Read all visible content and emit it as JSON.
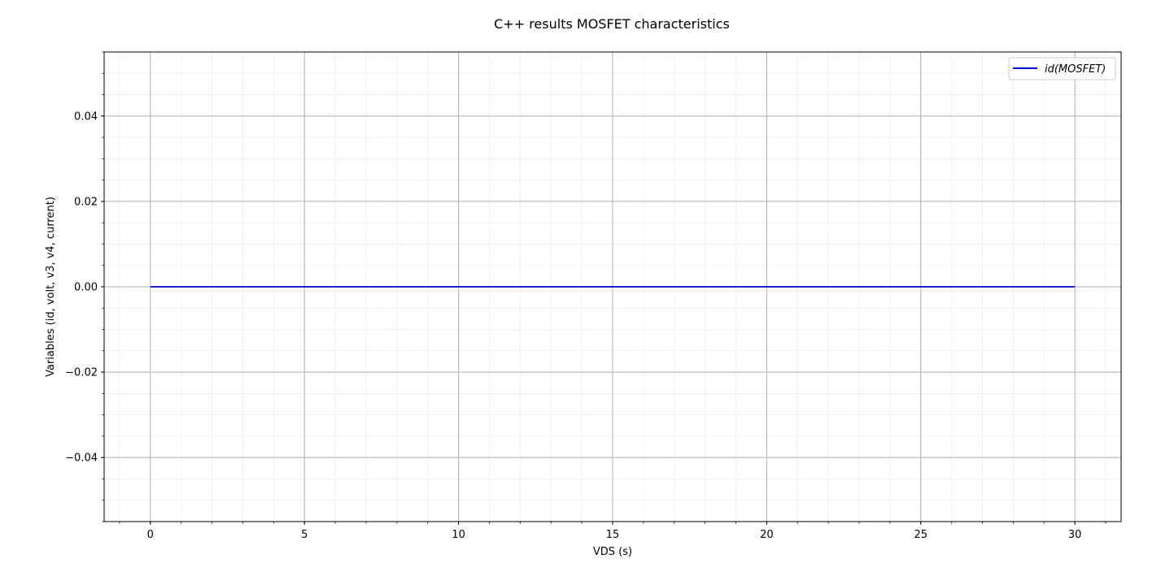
{
  "chart_data": {
    "type": "line",
    "title": "C++ results MOSFET characteristics",
    "xlabel": "VDS (s)",
    "ylabel": "Variables (id, volt, v3, v4, current)",
    "xlim": [
      -1.5,
      31.5
    ],
    "ylim": [
      -0.055,
      0.055
    ],
    "x_ticks": [
      0,
      5,
      10,
      15,
      20,
      25,
      30
    ],
    "x_tick_labels": [
      "0",
      "5",
      "10",
      "15",
      "20",
      "25",
      "30"
    ],
    "y_ticks": [
      -0.04,
      -0.02,
      0.0,
      0.02,
      0.04
    ],
    "y_tick_labels": [
      "−0.04",
      "−0.02",
      "0.00",
      "0.02",
      "0.04"
    ],
    "grid": true,
    "minor_grid": true,
    "legend_position": "top-right",
    "series": [
      {
        "name": "id(MOSFET)",
        "color": "#0000cc",
        "x": [
          0,
          30
        ],
        "y": [
          0,
          0
        ]
      }
    ]
  }
}
